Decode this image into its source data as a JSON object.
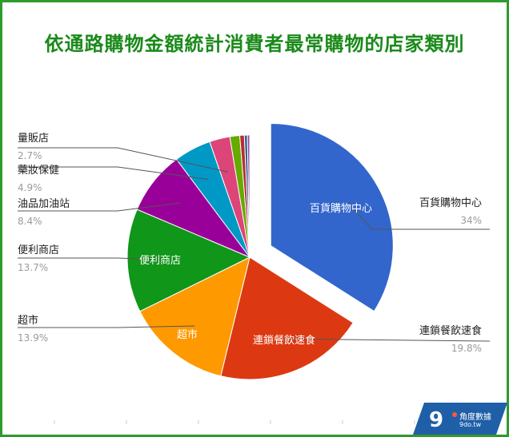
{
  "title": "依通路購物金額統計消費者最常購物的店家類別",
  "colors": {
    "frame": "#2e9a2e",
    "title": "#1a8a1a",
    "logo_bg": "#1f5fa8"
  },
  "logo": {
    "name": "角度數據",
    "url": "9do.tw"
  },
  "chart_data": {
    "type": "pie",
    "title": "依通路購物金額統計消費者最常購物的店家類別",
    "start_angle_deg": 0,
    "direction": "clockwise",
    "exploded": "百貨購物中心",
    "slices": [
      {
        "name": "百貨購物中心",
        "value": 34,
        "label": "34%",
        "color": "#3366cc",
        "inner_label": "百貨購物中心"
      },
      {
        "name": "連鎖餐飲速食",
        "value": 19.8,
        "label": "19.8%",
        "color": "#dc3912",
        "inner_label": "連鎖餐飲速食"
      },
      {
        "name": "超市",
        "value": 13.9,
        "label": "13.9%",
        "color": "#ff9900",
        "inner_label": "超市"
      },
      {
        "name": "便利商店",
        "value": 13.7,
        "label": "13.7%",
        "color": "#109618",
        "inner_label": "便利商店"
      },
      {
        "name": "油品加油站",
        "value": 8.4,
        "label": "8.4%",
        "color": "#990099",
        "inner_label": ""
      },
      {
        "name": "藥妝保健",
        "value": 4.9,
        "label": "4.9%",
        "color": "#0099c6",
        "inner_label": ""
      },
      {
        "name": "量販店",
        "value": 2.7,
        "label": "2.7%",
        "color": "#dd4477",
        "inner_label": ""
      },
      {
        "name": "",
        "value": 1.3,
        "label": "",
        "color": "#66aa00",
        "inner_label": ""
      },
      {
        "name": "",
        "value": 0.6,
        "label": "",
        "color": "#b82e2e",
        "inner_label": ""
      },
      {
        "name": "",
        "value": 0.4,
        "label": "",
        "color": "#316395",
        "inner_label": ""
      },
      {
        "name": "",
        "value": 0.3,
        "label": "",
        "color": "#994499",
        "inner_label": ""
      }
    ]
  }
}
